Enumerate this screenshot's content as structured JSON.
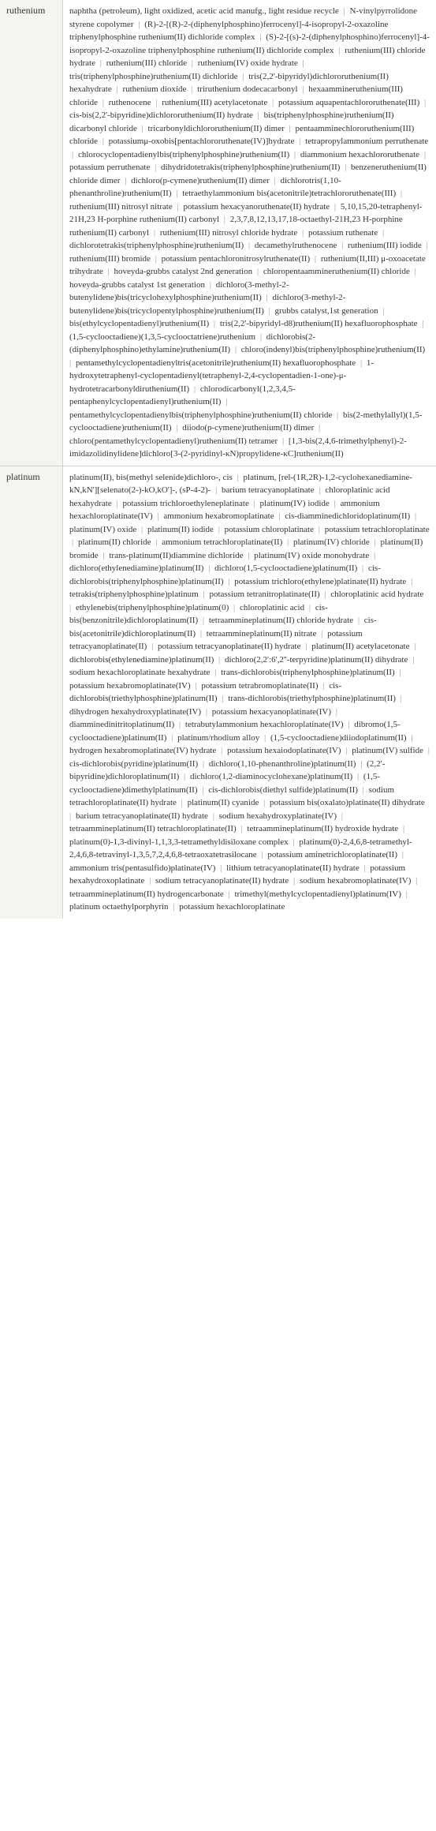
{
  "rows": [
    {
      "element": "ruthenium",
      "compounds": [
        "naphtha (petroleum), light oxidized, acetic acid manufg., light residue recycle",
        "N-vinylpyrrolidone styrene copolymer",
        "(R)-2-[(R)-2-(diphenylphosphino)ferrocenyl]-4-isopropyl-2-oxazoline triphenylphosphine ruthenium(II) dichloride complex",
        "(S)-2-[(s)-2-(diphenylphosphino)ferrocenyl]-4-isopropyl-2-oxazoline triphenylphosphine ruthenium(II) dichloride complex",
        "ruthenium(III) chloride hydrate",
        "ruthenium(III) chloride",
        "ruthenium(IV) oxide hydrate",
        "tris(triphenylphosphine)ruthenium(II) dichloride",
        "tris(2,2'-bipyridyl)dichlororuthenium(II) hexahydrate",
        "ruthenium dioxide",
        "triruthenium dodecacarbonyl",
        "hexaammineruthenium(III) chloride",
        "ruthenocene",
        "ruthenium(III) acetylacetonate",
        "potassium aquapentachlororuthenate(III)",
        "cis-bis(2,2'-bipyridine)dichlororuthenium(II) hydrate",
        "bis(triphenylphosphine)ruthenium(II) dicarbonyl chloride",
        "tricarbonyldichlororuthenium(II) dimer",
        "pentaamminechlororuthenium(III) chloride",
        "potassiumμ-oxobis[pentachlororuthenate(IV)]hydrate",
        "tetrapropylammonium perruthenate",
        "chlorocyclopentadienylbis(triphenylphosphine)ruthenium(II)",
        "diammonium hexachlororuthenate",
        "potassium perruthenate",
        "dihydridotetrakis(triphenylphosphine)ruthenium(II)",
        "benzeneruthenium(II) chloride dimer",
        "dichloro(p-cymene)ruthenium(II) dimer",
        "dichlorotris(1,10-phenanthroline)ruthenium(II)",
        "tetraethylammonium bis(acetonitrile)tetrachlororuthenate(III)",
        "ruthenium(III) nitrosyl nitrate",
        "potassium hexacyanoruthenate(II) hydrate",
        "5,10,15,20-tetraphenyl-21H,23 H-porphine ruthenium(II) carbonyl",
        "2,3,7,8,12,13,17,18-octaethyl-21H,23 H-porphine ruthenium(II) carbonyl",
        "ruthenium(III) nitrosyl chloride hydrate",
        "potassium ruthenate",
        "dichlorotetrakis(triphenylphosphine)ruthenium(II)",
        "decamethylruthenocene",
        "ruthenium(III) iodide",
        "ruthenium(III) bromide",
        "potassium pentachloronitrosylruthenate(II)",
        "ruthenium(II,III) μ-oxoacetate trihydrate",
        "hoveyda-grubbs catalyst 2nd generation",
        "chloropentaammineruthenium(II) chloride",
        "hoveyda-grubbs catalyst 1st generation",
        "dichloro(3-methyl-2-butenylidene)bis(tricyclohexylphosphine)ruthenium(II)",
        "dichloro(3-methyl-2-butenylidene)bis(tricyclopentylphosphine)ruthenium(II)",
        "grubbs catalyst,1st generation",
        "bis(ethylcyclopentadienyl)ruthenium(II)",
        "tris(2,2'-bipyridyl-d8)ruthenium(II) hexafluorophosphate",
        "(1,5-cyclooctadiene)(1,3,5-cyclooctatriene)ruthenium",
        "dichlorobis(2-(diphenylphosphino)ethylamine)ruthenium(II)",
        "chloro(indenyl)bis(triphenylphosphine)ruthenium(II)",
        "pentamethylcyclopentadienyltris(acetonitrile)ruthenium(II) hexafluorophosphate",
        "1-hydroxytetraphenyl-cyclopentadienyl(tetraphenyl-2,4-cyclopentadien-1-one)-μ-hydrotetracarbonyldiruthenium(II)",
        "chlorodicarbonyl(1,2,3,4,5-pentaphenylcyclopentadienyl)ruthenium(II)",
        "pentamethylcyclopentadienylbis(triphenylphosphine)ruthenium(II) chloride",
        "bis(2-methylallyl)(1,5-cyclooctadiene)ruthenium(II)",
        "diiodo(p-cymene)ruthenium(II) dimer",
        "chloro(pentamethylcyclopentadienyl)ruthenium(II) tetramer",
        "[1,3-bis(2,4,6-trimethylphenyl)-2-imidazolidinylidene]dichloro[3-(2-pyridinyl-κN)propylidene-κC]ruthenium(II)"
      ]
    },
    {
      "element": "platinum",
      "compounds": [
        "platinum(II), bis(methyl selenide)dichloro-, cis",
        "platinum, [rel-(1R,2R)-1,2-cyclohexanediamine-kN,kN'][selenato(2-)-kO,kO']-, (sP-4-2)-",
        "barium tetracyanoplatinate",
        "chloroplatinic acid hexahydrate",
        "potassium trichloroethyleneplatinate",
        "platinum(IV) iodide",
        "ammonium hexachloroplatinate(IV)",
        "ammonium hexabromoplatinate",
        "cis-diamminedichloridoplatinum(II)",
        "platinum(IV) oxide",
        "platinum(II) iodide",
        "potassium chloroplatinate",
        "potassium tetrachloroplatinate",
        "platinum(II) chloride",
        "ammonium tetrachloroplatinate(II)",
        "platinum(IV) chloride",
        "platinum(II) bromide",
        "trans-platinum(II)diammine dichloride",
        "platinum(IV) oxide monohydrate",
        "dichloro(ethylenediamine)platinum(II)",
        "dichloro(1,5-cyclooctadiene)platinum(II)",
        "cis-dichlorobis(triphenylphosphine)platinum(II)",
        "potassium trichloro(ethylene)platinate(II) hydrate",
        "tetrakis(triphenylphosphine)platinum",
        "potassium tetranitroplatinate(II)",
        "chloroplatinic acid hydrate",
        "ethylenebis(triphenylphosphine)platinum(0)",
        "chloroplatinic acid",
        "cis-bis(benzonitrile)dichloroplatinum(II)",
        "tetraammineplatinum(II) chloride hydrate",
        "cis-bis(acetonitrile)dichloroplatinum(II)",
        "tetraammineplatinum(II) nitrate",
        "potassium tetracyanoplatinate(II)",
        "potassium tetracyanoplatinate(II) hydrate",
        "platinum(II) acetylacetonate",
        "dichlorobis(ethylenediamine)platinum(II)",
        "dichloro(2,2':6',2''-terpyridine)platinum(II) dihydrate",
        "sodium hexachloroplatinate hexahydrate",
        "trans-dichlorobis(triphenylphosphine)platinum(II)",
        "potassium hexabromoplatinate(IV)",
        "potassium tetrabromoplatinate(II)",
        "cis-dichlorobis(triethylphosphine)platinum(II)",
        "trans-dichlorobis(triethylphosphine)platinum(II)",
        "dihydrogen hexahydroxyplatinate(IV)",
        "potassium hexacyanoplatinate(IV)",
        "diamminedinitritoplatinum(II)",
        "tetrabutylammonium hexachloroplatinate(IV)",
        "dibromo(1,5-cyclooctadiene)platinum(II)",
        "platinum/rhodium alloy",
        "(1,5-cyclooctadiene)diiodoplatinum(II)",
        "hydrogen hexabromoplatinate(IV) hydrate",
        "potassium hexaiodoplatinate(IV)",
        "platinum(IV) sulfide",
        "cis-dichlorobis(pyridine)platinum(II)",
        "dichloro(1,10-phenanthroline)platinum(II)",
        "(2,2'-bipyridine)dichloroplatinum(II)",
        "dichloro(1,2-diaminocyclohexane)platinum(II)",
        "(1,5-cyclooctadiene)dimethylplatinum(II)",
        "cis-dichlorobis(diethyl sulfide)platinum(II)",
        "sodium tetrachloroplatinate(II) hydrate",
        "platinum(II) cyanide",
        "potassium bis(oxalato)platinate(II) dihydrate",
        "barium tetracyanoplatinate(II) hydrate",
        "sodium hexahydroxyplatinate(IV)",
        "tetraammineplatinum(II) tetrachloroplatinate(II)",
        "tetraammineplatinum(II) hydroxide hydrate",
        "platinum(0)-1,3-divinyl-1,1,3,3-tetramethyldisiloxane complex",
        "platinum(0)-2,4,6,8-tetramethyl-2,4,6,8-tetravinyl-1,3,5,7,2,4,6,8-tetraoxatetrasilocane",
        "potassium aminetrichloroplatinate(II)",
        "ammonium tris(pentasulfido)platinate(IV)",
        "lithium tetracyanoplatinate(II) hydrate",
        "potassium hexahydroxoplatinate",
        "sodium tetracyanoplatinate(II) hydrate",
        "sodium hexabromoplatinate(IV)",
        "tetraammineplatinum(II) hydrogencarbonate",
        "trimethyl(methylcyclopentadienyl)platinum(IV)",
        "platinum octaethylporphyrin",
        "potassium hexachloroplatinate"
      ]
    }
  ],
  "separator": " | "
}
